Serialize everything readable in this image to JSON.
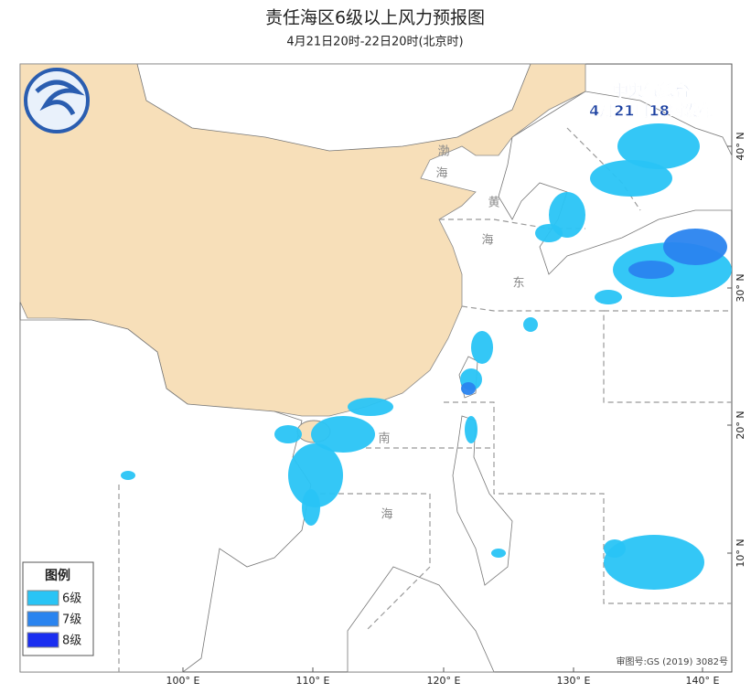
{
  "header": {
    "title": "责任海区6级以上风力预报图",
    "subtitle": "4月21日20时-22日20时(北京时)"
  },
  "issuer": {
    "name": "中央气象台",
    "time": "4月21日18时发布"
  },
  "legend": {
    "title": "图例",
    "items": [
      {
        "label": "6级",
        "color": "#29c4f5"
      },
      {
        "label": "7级",
        "color": "#2a84ef"
      },
      {
        "label": "8级",
        "color": "#1a2ef0"
      }
    ]
  },
  "longitude_labels": [
    "100° E",
    "110° E",
    "120° E",
    "130° E",
    "140° E"
  ],
  "latitude_labels": [
    "40° N",
    "30° N",
    "20° N",
    "10° N"
  ],
  "sea_labels": [
    "渤",
    "海",
    "黄",
    "海",
    "东",
    "南",
    "海"
  ],
  "approval": "审图号:GS (2019) 3082号"
}
